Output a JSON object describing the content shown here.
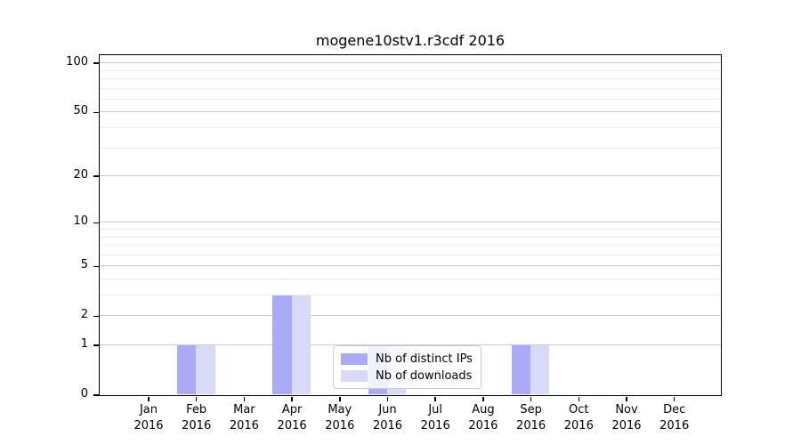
{
  "chart_data": {
    "type": "bar",
    "title": "mogene10stv1.r3cdf 2016",
    "categories": [
      "Jan",
      "Feb",
      "Mar",
      "Apr",
      "May",
      "Jun",
      "Jul",
      "Aug",
      "Sep",
      "Oct",
      "Nov",
      "Dec"
    ],
    "year_label": "2016",
    "series": [
      {
        "name": "Nb of distinct IPs",
        "color": "#aaaaf9",
        "values": [
          0,
          1,
          0,
          3,
          0,
          1,
          0,
          0,
          1,
          0,
          0,
          0
        ]
      },
      {
        "name": "Nb of downloads",
        "color": "#d9d9fa",
        "values": [
          0,
          1,
          0,
          3,
          0,
          1,
          0,
          0,
          1,
          0,
          0,
          0
        ]
      }
    ],
    "xlabel": "",
    "ylabel": "",
    "yscale": "log1p",
    "ylim": [
      0,
      112
    ],
    "y_major_ticks": [
      0,
      1,
      2,
      5,
      10,
      20,
      50,
      100
    ],
    "y_minor_gridlines": [
      3,
      4,
      6,
      7,
      8,
      9,
      30,
      40,
      60,
      70,
      80,
      90
    ],
    "grid": true,
    "legend_position": "lower center",
    "colors": {
      "major_grid": "#cccccc",
      "minor_grid": "#ececec",
      "axis": "#000000",
      "legend_border": "#cccccc"
    }
  }
}
